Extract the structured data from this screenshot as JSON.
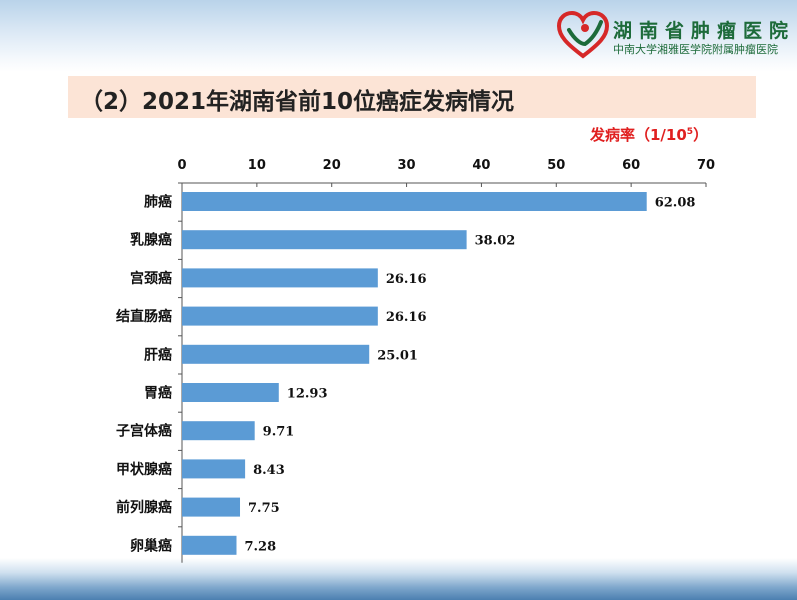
{
  "header": {
    "hospital_name": "湖南省肿瘤医院",
    "hospital_subtitle": "中南大学湘雅医学院附属肿瘤医院"
  },
  "title": "（2）2021年湖南省前10位癌症发病情况",
  "unit_label": "发病率（1/10",
  "unit_exponent": "5",
  "unit_close": "）",
  "colors": {
    "bar": "#5b9bd5",
    "title_bg": "#fce4d6",
    "unit_text": "#e02020",
    "logo_green": "#1d6b3a",
    "logo_red": "#d62828"
  },
  "chart_data": {
    "type": "bar",
    "orientation": "horizontal",
    "x_axis_position": "top",
    "categories": [
      "肺癌",
      "乳腺癌",
      "宫颈癌",
      "结直肠癌",
      "肝癌",
      "胃癌",
      "子宫体癌",
      "甲状腺癌",
      "前列腺癌",
      "卵巢癌"
    ],
    "values": [
      62.08,
      38.02,
      26.16,
      26.16,
      25.01,
      12.93,
      9.71,
      8.43,
      7.75,
      7.28
    ],
    "data_labels": [
      "62.08",
      "38.02",
      "26.16",
      "26.16",
      "25.01",
      "12.93",
      "9.71",
      "8.43",
      "7.75",
      "7.28"
    ],
    "xlim": [
      0,
      70
    ],
    "ticks": [
      0,
      10,
      20,
      30,
      40,
      50,
      60,
      70
    ],
    "tick_labels": [
      "0",
      "10",
      "20",
      "30",
      "40",
      "50",
      "60",
      "70"
    ],
    "grid": false,
    "legend": "none"
  }
}
